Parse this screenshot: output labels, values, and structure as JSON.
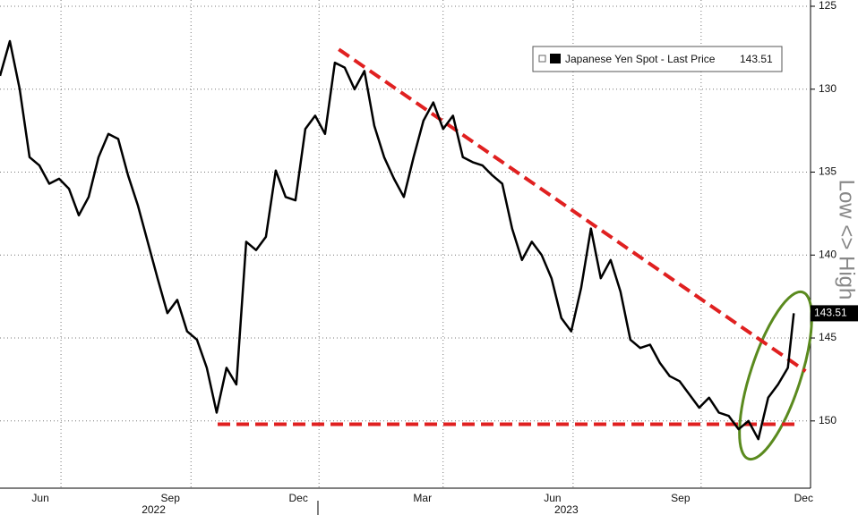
{
  "chart_data": {
    "type": "line",
    "inverted_y": true,
    "grid": true,
    "legend_position": "upper right",
    "side_label": "Low <> High",
    "series": [
      {
        "name": "Japanese Yen Spot - Last Price",
        "color": "#000000",
        "values": [
          129.2,
          127.1,
          130.0,
          134.1,
          134.6,
          135.7,
          135.4,
          136.0,
          137.6,
          136.5,
          134.1,
          132.7,
          133.0,
          135.2,
          137.0,
          139.2,
          141.4,
          143.5,
          142.7,
          144.6,
          145.1,
          146.8,
          149.5,
          146.8,
          147.8,
          139.2,
          139.7,
          138.9,
          134.9,
          136.5,
          136.7,
          132.4,
          131.6,
          132.7,
          128.4,
          128.7,
          130.0,
          128.9,
          132.2,
          134.1,
          135.4,
          136.5,
          134.1,
          131.9,
          130.8,
          132.4,
          131.6,
          134.1,
          134.4,
          134.6,
          135.2,
          135.7,
          138.4,
          140.3,
          139.2,
          140.0,
          141.4,
          143.8,
          144.6,
          142.0,
          138.4,
          141.4,
          140.3,
          142.2,
          145.1,
          145.6,
          145.4,
          146.5,
          147.3,
          147.6,
          148.4,
          149.2,
          148.6,
          149.5,
          149.7,
          150.5,
          150.0,
          151.1,
          148.6,
          147.8,
          146.8,
          143.51
        ]
      }
    ],
    "x": [
      0,
      1,
      2,
      3,
      4,
      5,
      6,
      7,
      8,
      9,
      10,
      11,
      12,
      13,
      14,
      15,
      16,
      17,
      18,
      19,
      20,
      21,
      22,
      23,
      24,
      25,
      26,
      27,
      28,
      29,
      30,
      31,
      32,
      33,
      34,
      35,
      36,
      37,
      38,
      39,
      40,
      41,
      42,
      43,
      44,
      45,
      46,
      47,
      48,
      49,
      50,
      51,
      52,
      53,
      54,
      55,
      56,
      57,
      58,
      59,
      60,
      61,
      62,
      63,
      64,
      65,
      66,
      67,
      68,
      69,
      70,
      71,
      72,
      73,
      74,
      75,
      76,
      77,
      78,
      79,
      80,
      80.6
    ],
    "xlim": [
      0,
      82.3
    ],
    "xticks": [
      {
        "value": 4.1,
        "label": "Jun"
      },
      {
        "value": 17.3,
        "label": "Sep"
      },
      {
        "value": 30.3,
        "label": "Dec"
      },
      {
        "value": 42.9,
        "label": "Mar"
      },
      {
        "value": 56.1,
        "label": "Jun"
      },
      {
        "value": 69.1,
        "label": "Sep"
      },
      {
        "value": 81.6,
        "label": "Dec"
      }
    ],
    "year_labels": [
      {
        "value": 15.6,
        "label": "2022"
      },
      {
        "value": 57.5,
        "label": "2023"
      }
    ],
    "ylim": [
      125,
      154
    ],
    "yticks": [
      125,
      130,
      135,
      140,
      145,
      150
    ],
    "trendlines": [
      {
        "color": "#e02020",
        "x": [
          34.4,
          81.8
        ],
        "y": [
          127.6,
          147.0
        ]
      },
      {
        "color": "#e02020",
        "x": [
          22.1,
          80.9
        ],
        "y": [
          150.2,
          150.2
        ]
      }
    ]
  }
}
